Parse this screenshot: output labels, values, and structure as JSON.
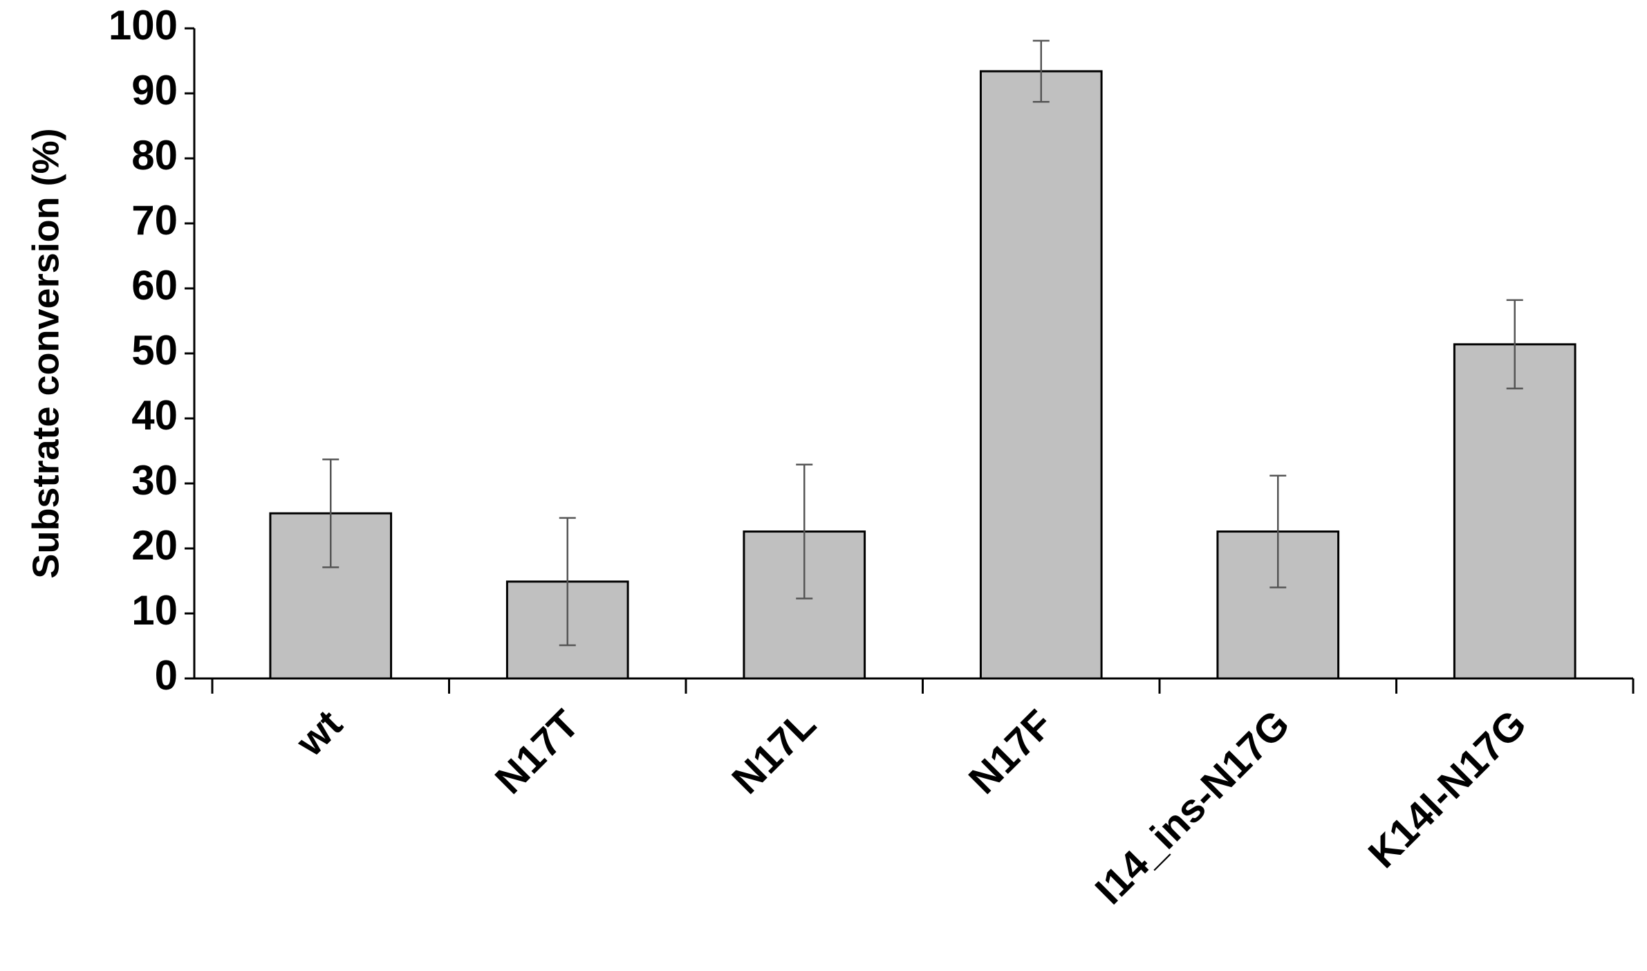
{
  "chart_data": {
    "type": "bar",
    "y_label": "Substrate conversion (%)",
    "categories": [
      "wt",
      "N17T",
      "N17L",
      "N17F",
      "I14_ins-N17G",
      "K14I-N17G"
    ],
    "values": [
      25.4,
      14.9,
      22.6,
      93.4,
      22.6,
      51.4
    ],
    "errors": [
      8.3,
      9.8,
      10.3,
      4.7,
      8.6,
      6.8
    ],
    "color": "#c0c0c0",
    "ylim": [
      0,
      100
    ],
    "yticks": [
      0,
      10,
      20,
      30,
      40,
      50,
      60,
      70,
      80,
      90,
      100
    ],
    "grid": false
  }
}
